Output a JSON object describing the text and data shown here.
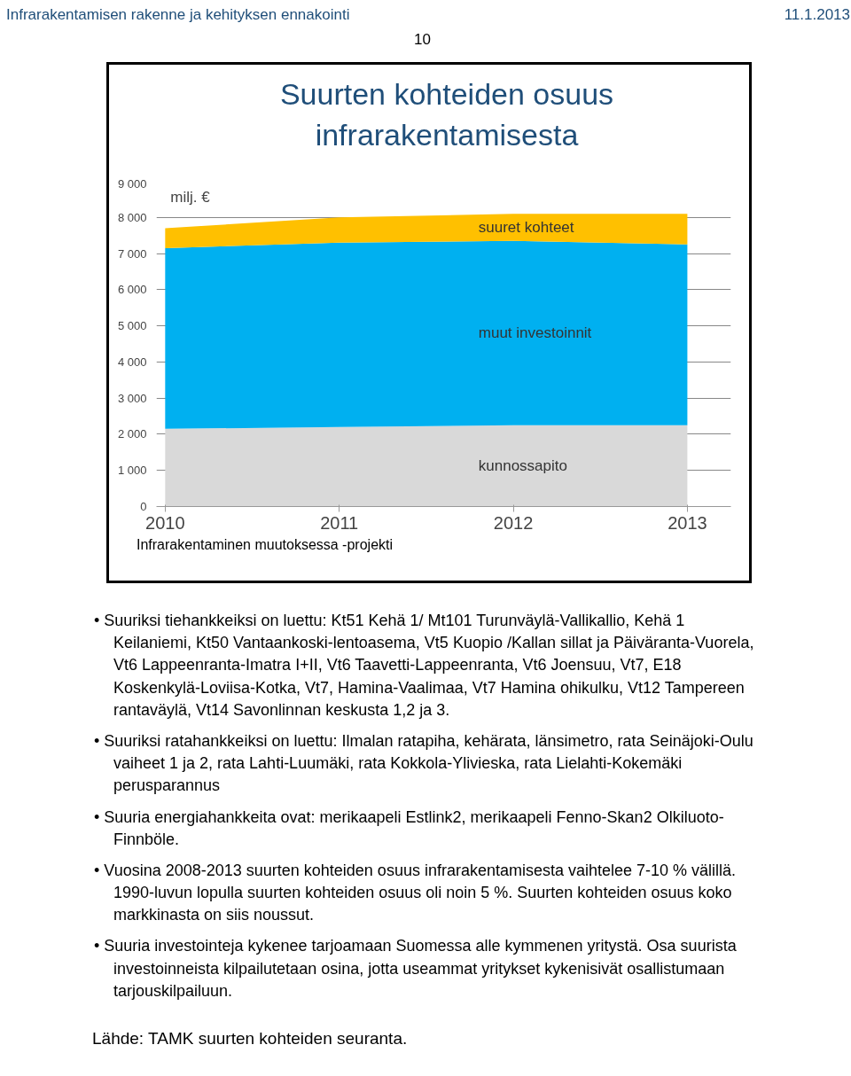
{
  "chart_data": {
    "type": "area",
    "stacked": true,
    "title": "Suurten kohteiden osuus infrarakentamisesta",
    "ylabel": "milj. €",
    "categories": [
      "2010",
      "2011",
      "2012",
      "2013"
    ],
    "series": [
      {
        "name": "kunnossapito",
        "color": "#d9d9d9",
        "values": [
          2150,
          2200,
          2250,
          2250
        ]
      },
      {
        "name": "muut investoinnit",
        "color": "#00b0f0",
        "values": [
          5000,
          5100,
          5100,
          5000
        ]
      },
      {
        "name": "suuret kohteet",
        "color": "#ffc000",
        "values": [
          550,
          700,
          750,
          850
        ]
      }
    ],
    "ylim": [
      0,
      9000
    ],
    "yticks": [
      0,
      {
        "value": 1000,
        "label": "1 000"
      },
      {
        "value": 2000,
        "label": "2 000"
      },
      {
        "value": 3000,
        "label": "3 000"
      },
      {
        "value": 4000,
        "label": "4 000"
      },
      {
        "value": 5000,
        "label": "5 000"
      },
      {
        "value": 6000,
        "label": "6 000"
      },
      {
        "value": 7000,
        "label": "7 000"
      },
      {
        "value": 8000,
        "label": "8 000"
      },
      {
        "value": 9000,
        "label": "9 000"
      }
    ],
    "grid": "y",
    "annotations": [
      "Infrarakentamisen rakenne ja kehityksen ennakointi",
      "11.1.2013",
      "10",
      "Infrarakentaminen muutoksessa -projekti",
      "• Suuriksi tiehankkeiksi on luettu: Kt51 Kehä 1/ Mt101 Turunväylä-Vallikallio, Kehä 1 Keilaniemi, Kt50 Vantaankoski-lentoasema, Vt5 Kuopio /Kallan sillat ja Päiväranta-Vuorela, Vt6 Lappeenranta-Imatra I+II, Vt6 Taavetti-Lappeenranta, Vt6 Joensuu, Vt7, E18 Koskenkylä-Loviisa-Kotka, Vt7, Hamina-Vaalimaa, Vt7 Hamina ohikulku, Vt12 Tampereen rantaväylä, Vt14 Savonlinnan keskusta 1,2 ja 3.",
      "• Suuriksi ratahankkeiksi on luettu: Ilmalan ratapiha, kehärata, länsimetro, rata Seinäjoki-Oulu vaiheet 1 ja 2, rata Lahti-Luumäki, rata Kokkola-Ylivieska, rata Lielahti-Kokemäki perusparannus",
      "• Suuria energiahankkeita ovat: merikaapeli Estlink2, merikaapeli Fenno-Skan2 Olkiluoto-Finnböle.",
      "• Vuosina 2008-2013 suurten kohteiden osuus infrarakentamisesta vaihtelee 7-10 % välillä. 1990-luvun lopulla suurten kohteiden osuus oli noin 5 %. Suurten kohteiden osuus koko markkinasta on siis noussut.",
      "• Suuria investointeja kykenee tarjoamaan Suomessa alle kymmenen yritystä. Osa suurista investoinneista kilpailutetaan osina, jotta useammat yritykset kykenisivät osallistumaan tarjouskilpailuun.",
      "Lähde: TAMK suurten kohteiden seuranta."
    ]
  }
}
